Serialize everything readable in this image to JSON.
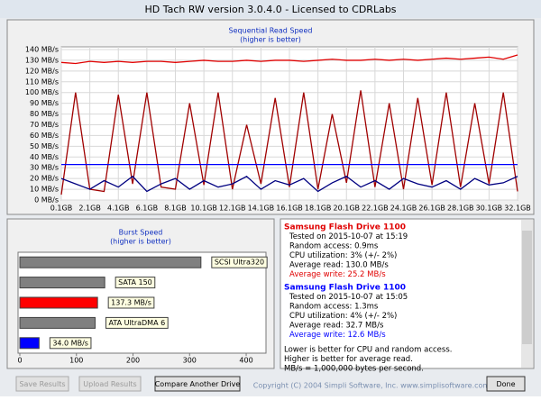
{
  "window": {
    "title": "HD Tach RW version 3.0.4.0 - Licensed to CDRLabs"
  },
  "chart_data": [
    {
      "type": "line",
      "title": "Sequential Read Speed",
      "subtitle": "(higher is better)",
      "x": [
        0.1,
        1.1,
        2.1,
        3.1,
        4.1,
        5.1,
        6.1,
        7.1,
        8.1,
        9.1,
        10.1,
        11.1,
        12.1,
        13.1,
        14.1,
        15.1,
        16.1,
        17.1,
        18.1,
        19.1,
        20.1,
        21.1,
        22.1,
        23.1,
        24.1,
        25.1,
        26.1,
        27.1,
        28.1,
        29.1,
        30.1,
        31.1,
        32.1
      ],
      "xlim": [
        0.1,
        32.1
      ],
      "xticks": [
        {
          "value": 0.1,
          "label": "0.1GB"
        },
        {
          "value": 2.1,
          "label": "2.1GB"
        },
        {
          "value": 4.1,
          "label": "4.1GB"
        },
        {
          "value": 6.1,
          "label": "6.1GB"
        },
        {
          "value": 8.1,
          "label": "8.1GB"
        },
        {
          "value": 10.1,
          "label": "10.1GB"
        },
        {
          "value": 12.1,
          "label": "12.1GB"
        },
        {
          "value": 14.1,
          "label": "14.1GB"
        },
        {
          "value": 16.1,
          "label": "16.1GB"
        },
        {
          "value": 18.1,
          "label": "18.1GB"
        },
        {
          "value": 20.1,
          "label": "20.1GB"
        },
        {
          "value": 22.1,
          "label": "22.1GB"
        },
        {
          "value": 24.1,
          "label": "24.1GB"
        },
        {
          "value": 26.1,
          "label": "26.1GB"
        },
        {
          "value": 28.1,
          "label": "28.1GB"
        },
        {
          "value": 30.1,
          "label": "30.1GB"
        },
        {
          "value": 32.1,
          "label": "32.1GB"
        }
      ],
      "ylim": [
        0,
        140
      ],
      "yticks": [
        {
          "value": 0,
          "label": "0 MB/s"
        },
        {
          "value": 10,
          "label": "10 MB/s"
        },
        {
          "value": 20,
          "label": "20 MB/s"
        },
        {
          "value": 30,
          "label": "30 MB/s"
        },
        {
          "value": 40,
          "label": "40 MB/s"
        },
        {
          "value": 50,
          "label": "50 MB/s"
        },
        {
          "value": 60,
          "label": "60 MB/s"
        },
        {
          "value": 70,
          "label": "70 MB/s"
        },
        {
          "value": 80,
          "label": "80 MB/s"
        },
        {
          "value": 90,
          "label": "90 MB/s"
        },
        {
          "value": 100,
          "label": "100 MB/s"
        },
        {
          "value": 110,
          "label": "110 MB/s"
        },
        {
          "value": 120,
          "label": "120 MB/s"
        },
        {
          "value": 130,
          "label": "130 MB/s"
        },
        {
          "value": 140,
          "label": "140 MB/s"
        }
      ],
      "grid": true,
      "series": [
        {
          "color": "#e00000",
          "values": [
            128,
            127,
            129,
            128,
            129,
            128,
            129,
            129,
            128,
            129,
            130,
            129,
            129,
            130,
            129,
            130,
            130,
            129,
            130,
            131,
            130,
            130,
            131,
            130,
            131,
            130,
            131,
            132,
            131,
            132,
            133,
            131,
            135
          ]
        },
        {
          "color": "#a00000",
          "values": [
            5,
            100,
            10,
            8,
            98,
            15,
            100,
            12,
            10,
            90,
            14,
            100,
            10,
            70,
            15,
            95,
            12,
            100,
            10,
            80,
            16,
            102,
            12,
            90,
            10,
            95,
            14,
            100,
            12,
            90,
            15,
            100,
            8
          ]
        },
        {
          "color": "#000080",
          "values": [
            20,
            15,
            10,
            18,
            12,
            22,
            8,
            15,
            20,
            10,
            18,
            12,
            15,
            22,
            10,
            18,
            14,
            20,
            8,
            16,
            22,
            12,
            18,
            10,
            20,
            15,
            12,
            18,
            10,
            20,
            14,
            16,
            22
          ]
        },
        {
          "color": "#0000ff",
          "values": [
            33,
            33,
            33,
            33,
            33,
            33,
            33,
            33,
            33,
            33,
            33,
            33,
            33,
            33,
            33,
            33,
            33,
            33,
            33,
            33,
            33,
            33,
            33,
            33,
            33,
            33,
            33,
            33,
            33,
            33,
            33,
            33,
            33
          ]
        }
      ]
    },
    {
      "type": "bar",
      "orientation": "horizontal",
      "title": "Burst Speed",
      "subtitle": "(higher is better)",
      "categories": [
        "SCSI Ultra320",
        "SATA 150",
        null,
        "ATA UltraDMA 6",
        null
      ],
      "values": [
        320,
        150,
        137.3,
        133,
        34.0
      ],
      "value_labels": [
        null,
        null,
        "137.3 MB/s",
        null,
        "34.0 MB/s"
      ],
      "colors": [
        "#808080",
        "#808080",
        "#ff0000",
        "#808080",
        "#0000ff"
      ],
      "xlim": [
        0,
        435
      ],
      "xticks": [
        0,
        100,
        200,
        300,
        400
      ]
    }
  ],
  "results": [
    {
      "name": "Samsung Flash Drive 1100",
      "color": "#e00000",
      "lines": [
        "Tested on 2015-10-07 at 15:19",
        "Random access: 0.9ms",
        "CPU utilization: 3% (+/- 2%)",
        "Average read: 130.0 MB/s",
        "Average write: 25.2 MB/s"
      ]
    },
    {
      "name": "Samsung Flash Drive 1100",
      "color": "#0000ff",
      "lines": [
        "Tested on 2015-10-07 at 15:05",
        "Random access: 1.3ms",
        "CPU utilization: 4% (+/- 2%)",
        "Average read: 32.7 MB/s",
        "Average write: 12.6 MB/s"
      ]
    }
  ],
  "notes": [
    "Lower is better for CPU and random access.",
    "Higher is better for average read.",
    "MB/s = 1,000,000 bytes per second."
  ],
  "buttons": [
    {
      "label": "Save Results",
      "enabled": false
    },
    {
      "label": "Upload Results",
      "enabled": false
    },
    {
      "label": "Compare Another Drive",
      "enabled": true
    }
  ],
  "footer": "Copyright (C) 2004 Simpli Software, Inc. www.simplisoftware.com",
  "done_button": "Done"
}
